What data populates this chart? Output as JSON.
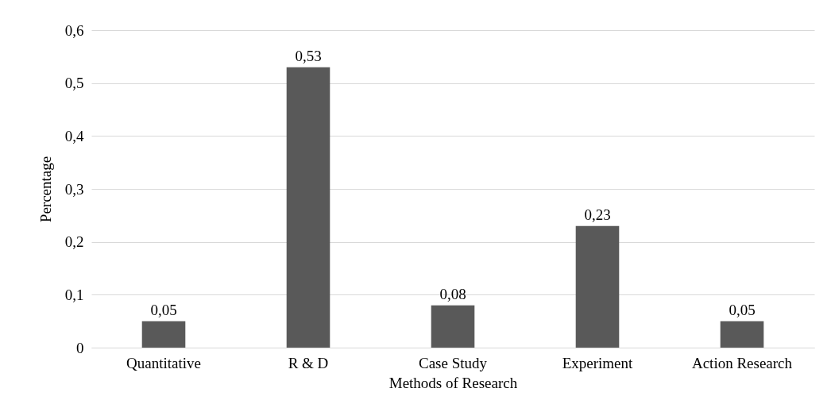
{
  "chart_data": {
    "type": "bar",
    "xlabel": "Methods of Research",
    "ylabel": "Percentage",
    "categories": [
      "Quantitative",
      "R & D",
      "Case Study",
      "Experiment",
      "Action Research"
    ],
    "values": [
      0.05,
      0.53,
      0.08,
      0.23,
      0.05
    ],
    "value_labels": [
      "0,05",
      "0,53",
      "0,08",
      "0,23",
      "0,05"
    ],
    "color": "#595959",
    "ylim": [
      0,
      0.6
    ],
    "yticks": [
      0,
      {
        "value": 0.1,
        "label": "0,1"
      },
      {
        "value": 0.2,
        "label": "0,2"
      },
      {
        "value": 0.3,
        "label": "0,3"
      },
      {
        "value": 0.4,
        "label": "0,4"
      },
      {
        "value": 0.5,
        "label": "0,5"
      },
      {
        "value": 0.6,
        "label": "0,6"
      }
    ],
    "grid": "y"
  }
}
